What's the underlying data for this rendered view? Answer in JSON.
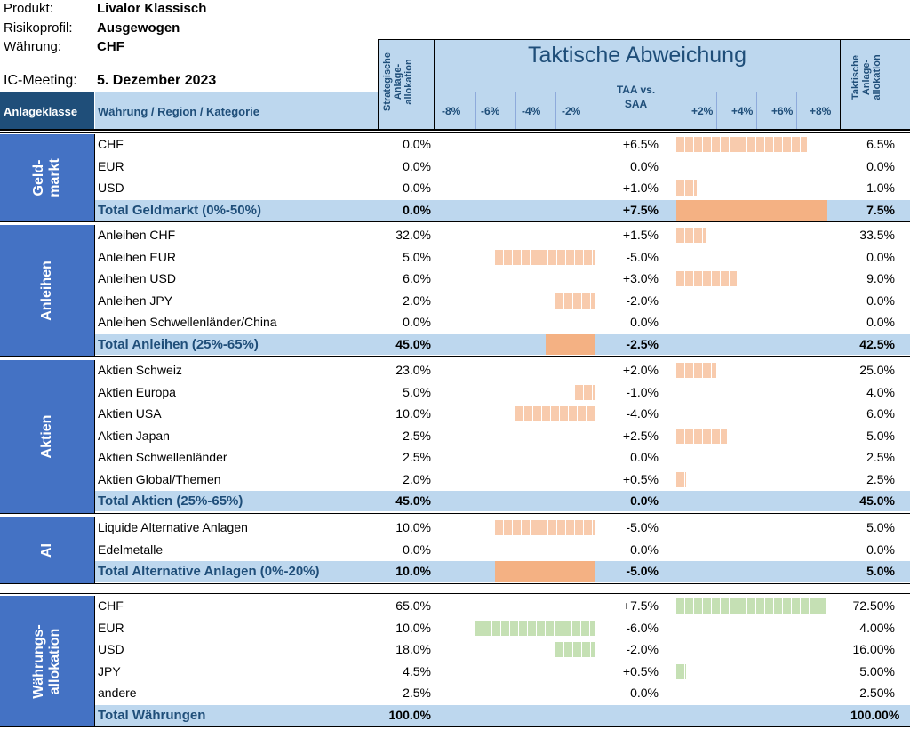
{
  "info": {
    "produkt_label": "Produkt:",
    "produkt_value": "Livalor Klassisch",
    "risiko_label": "Risikoprofil:",
    "risiko_value": "Ausgewogen",
    "waehrung_label": "Währung:",
    "waehrung_value": "CHF",
    "ic_label": "IC-Meeting:",
    "ic_value": "5. Dezember 2023"
  },
  "header": {
    "anlageklasse": "Anlageklasse",
    "kategorie": "Währung / Region / Kategorie",
    "saa_line1": "Strategische",
    "saa_line2": "Anlage-",
    "saa_line3": "allokation",
    "title": "Taktische Abweichung",
    "taa_vs_line1": "TAA vs.",
    "taa_vs_line2": "SAA",
    "taa_line1": "Taktische",
    "taa_line2": "Anlage-",
    "taa_line3": "allokation",
    "ticks_neg": [
      "-8%",
      "-6%",
      "-4%",
      "-2%"
    ],
    "ticks_pos": [
      "+2%",
      "+4%",
      "+6%",
      "+8%"
    ]
  },
  "sections": [
    {
      "label_line1": "Geld-",
      "label_line2": "markt",
      "rows": [
        {
          "name": "CHF",
          "saa": "0.0%",
          "diff": "+6.5%",
          "taa": "6.5%",
          "value": 6.5
        },
        {
          "name": "EUR",
          "saa": "0.0%",
          "diff": "0.0%",
          "taa": "0.0%",
          "value": 0.0
        },
        {
          "name": "USD",
          "saa": "0.0%",
          "diff": "+1.0%",
          "taa": "1.0%",
          "value": 1.0
        }
      ],
      "total": {
        "name": "Total Geldmarkt (0%-50%)",
        "saa": "0.0%",
        "diff": "+7.5%",
        "taa": "7.5%",
        "value": 7.5
      }
    },
    {
      "label_line1": "Anleihen",
      "label_line2": "",
      "rows": [
        {
          "name": "Anleihen CHF",
          "saa": "32.0%",
          "diff": "+1.5%",
          "taa": "33.5%",
          "value": 1.5
        },
        {
          "name": "Anleihen EUR",
          "saa": "5.0%",
          "diff": "-5.0%",
          "taa": "0.0%",
          "value": -5.0
        },
        {
          "name": "Anleihen USD",
          "saa": "6.0%",
          "diff": "+3.0%",
          "taa": "9.0%",
          "value": 3.0
        },
        {
          "name": "Anleihen JPY",
          "saa": "2.0%",
          "diff": "-2.0%",
          "taa": "0.0%",
          "value": -2.0
        },
        {
          "name": "Anleihen Schwellenländer/China",
          "saa": "0.0%",
          "diff": "0.0%",
          "taa": "0.0%",
          "value": 0.0
        }
      ],
      "total": {
        "name": "Total Anleihen (25%-65%)",
        "saa": "45.0%",
        "diff": "-2.5%",
        "taa": "42.5%",
        "value": -2.5
      }
    },
    {
      "label_line1": "Aktien",
      "label_line2": "",
      "rows": [
        {
          "name": "Aktien Schweiz",
          "saa": "23.0%",
          "diff": "+2.0%",
          "taa": "25.0%",
          "value": 2.0
        },
        {
          "name": "Aktien Europa",
          "saa": "5.0%",
          "diff": "-1.0%",
          "taa": "4.0%",
          "value": -1.0
        },
        {
          "name": "Aktien USA",
          "saa": "10.0%",
          "diff": "-4.0%",
          "taa": "6.0%",
          "value": -4.0
        },
        {
          "name": "Aktien Japan",
          "saa": "2.5%",
          "diff": "+2.5%",
          "taa": "5.0%",
          "value": 2.5
        },
        {
          "name": "Aktien Schwellenländer",
          "saa": "2.5%",
          "diff": "0.0%",
          "taa": "2.5%",
          "value": 0.0
        },
        {
          "name": "Aktien Global/Themen",
          "saa": "2.0%",
          "diff": "+0.5%",
          "taa": "2.5%",
          "value": 0.5
        }
      ],
      "total": {
        "name": "Total Aktien (25%-65%)",
        "saa": "45.0%",
        "diff": "0.0%",
        "taa": "45.0%",
        "value": 0.0
      }
    },
    {
      "label_line1": "AI",
      "label_line2": "",
      "rows": [
        {
          "name": "Liquide Alternative Anlagen",
          "saa": "10.0%",
          "diff": "-5.0%",
          "taa": "5.0%",
          "value": -5.0
        },
        {
          "name": "Edelmetalle",
          "saa": "0.0%",
          "diff": "0.0%",
          "taa": "0.0%",
          "value": 0.0
        }
      ],
      "total": {
        "name": "Total Alternative Anlagen (0%-20%)",
        "saa": "10.0%",
        "diff": "-5.0%",
        "taa": "5.0%",
        "value": -5.0
      }
    },
    {
      "label_line1": "Währungs-",
      "label_line2": "allokation",
      "rows": [
        {
          "name": "CHF",
          "saa": "65.0%",
          "diff": "+7.5%",
          "taa": "72.50%",
          "value": 7.5
        },
        {
          "name": "EUR",
          "saa": "10.0%",
          "diff": "-6.0%",
          "taa": "4.00%",
          "value": -6.0
        },
        {
          "name": "USD",
          "saa": "18.0%",
          "diff": "-2.0%",
          "taa": "16.00%",
          "value": -2.0
        },
        {
          "name": "JPY",
          "saa": "4.5%",
          "diff": "+0.5%",
          "taa": "5.00%",
          "value": 0.5
        },
        {
          "name": "andere",
          "saa": "2.5%",
          "diff": "0.0%",
          "taa": "2.50%",
          "value": 0.0
        }
      ],
      "total": {
        "name": "Total Währungen",
        "saa": "100.0%",
        "diff": "",
        "taa": "100.00%",
        "value": 0.0
      }
    }
  ],
  "colors": {
    "dark_blue": "#1f4e79",
    "mid_blue": "#4472c4",
    "light_blue": "#bdd7ee",
    "orange": "#f4b183",
    "orange_light": "#f8cbad",
    "green_light": "#c5e0b4"
  }
}
